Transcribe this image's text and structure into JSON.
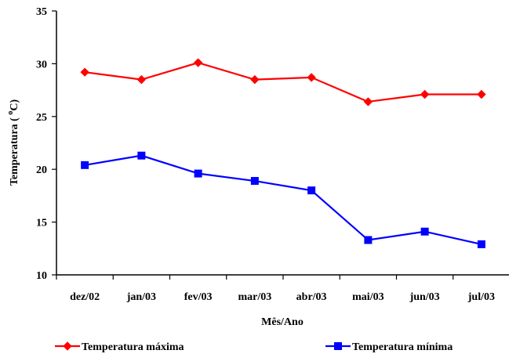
{
  "chart_data": {
    "type": "line",
    "categories": [
      "dez/02",
      "jan/03",
      "fev/03",
      "mar/03",
      "abr/03",
      "mai/03",
      "jun/03",
      "jul/03"
    ],
    "series": [
      {
        "name": "Temperatura máxima",
        "values": [
          29.2,
          28.5,
          30.1,
          28.5,
          28.7,
          26.4,
          27.1,
          27.1
        ],
        "color": "#ff0000",
        "marker": "diamond"
      },
      {
        "name": "Temperatura mínima",
        "values": [
          20.4,
          21.3,
          19.6,
          18.9,
          18.0,
          13.3,
          14.1,
          12.9
        ],
        "color": "#0000ff",
        "marker": "square"
      }
    ],
    "xlabel": "Mês/Ano",
    "ylabel": "Temperatura (°C)",
    "ylabel_parts": {
      "before": "Temperatura ( ",
      "sup": "o",
      "after": "C)"
    },
    "ylim": [
      10,
      35
    ],
    "yticks": [
      10,
      15,
      20,
      25,
      30,
      35
    ],
    "grid": false,
    "legend_position": "bottom"
  }
}
